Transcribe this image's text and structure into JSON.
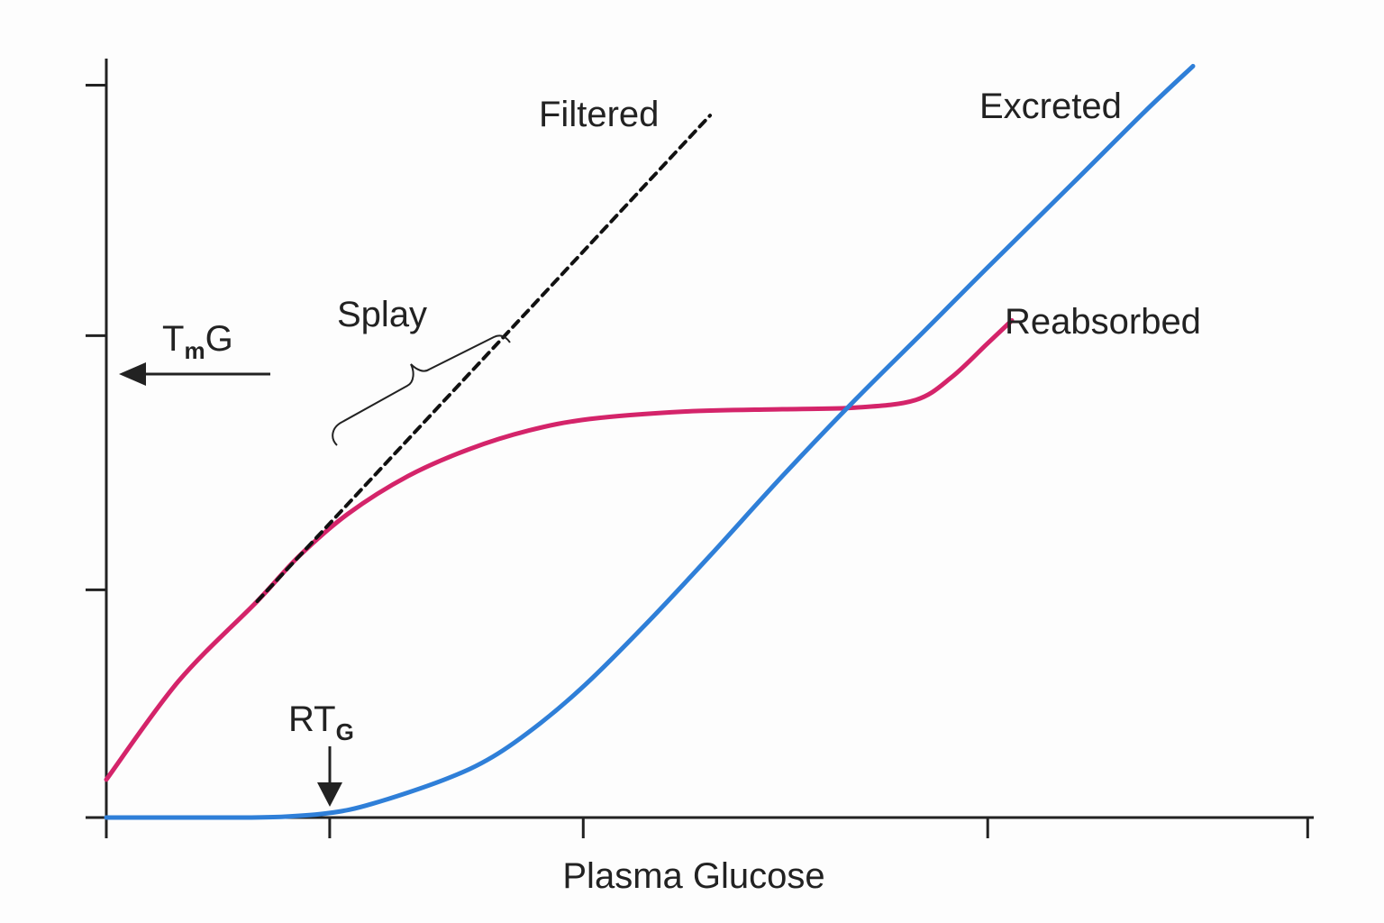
{
  "chart_data": {
    "type": "line",
    "title": "",
    "xlabel": "Plasma Glucose",
    "ylabel": "",
    "xlim": [
      0,
      100
    ],
    "ylim": [
      0,
      100
    ],
    "x_ticks": [
      0,
      18.5,
      39.5,
      73,
      99.5
    ],
    "y_ticks": [
      0,
      30,
      63.5,
      96.5
    ],
    "series": [
      {
        "name": "Filtered",
        "color": "#111111",
        "style": "dashed",
        "points": [
          [
            12.5,
            28.5
          ],
          [
            50.0,
            92.5
          ]
        ]
      },
      {
        "name": "Reabsorbed",
        "color": "#d4246a",
        "style": "solid",
        "points": [
          [
            0,
            5
          ],
          [
            6,
            18
          ],
          [
            12.5,
            28.5
          ],
          [
            16,
            34.5
          ],
          [
            20,
            40
          ],
          [
            25,
            45
          ],
          [
            30,
            48.5
          ],
          [
            35,
            51
          ],
          [
            40,
            52.5
          ],
          [
            48,
            53.5
          ],
          [
            56,
            53.8
          ],
          [
            62,
            54
          ],
          [
            67,
            55
          ],
          [
            70,
            58
          ],
          [
            73,
            62.5
          ],
          [
            75,
            65.5
          ]
        ]
      },
      {
        "name": "Excreted",
        "color": "#2f7fd8",
        "style": "solid",
        "points": [
          [
            0,
            0
          ],
          [
            10,
            0
          ],
          [
            14.5,
            0.1
          ],
          [
            18.5,
            0.6
          ],
          [
            22,
            1.8
          ],
          [
            28,
            5
          ],
          [
            32,
            8
          ],
          [
            36,
            12.5
          ],
          [
            40,
            18
          ],
          [
            45,
            26
          ],
          [
            50,
            34.5
          ],
          [
            56,
            45
          ],
          [
            62,
            55
          ],
          [
            68,
            64.5
          ],
          [
            73,
            72.5
          ],
          [
            80,
            83.5
          ],
          [
            86,
            93
          ],
          [
            90,
            99
          ]
        ]
      }
    ],
    "annotations": {
      "filtered": "Filtered",
      "excreted": "Excreted",
      "reabsorbed": "Reabsorbed",
      "splay": "Splay",
      "tmg_main": "T",
      "tmg_sub": "m",
      "tmg_tail": "G",
      "rtg_main": "RT",
      "rtg_sub": "G"
    }
  }
}
